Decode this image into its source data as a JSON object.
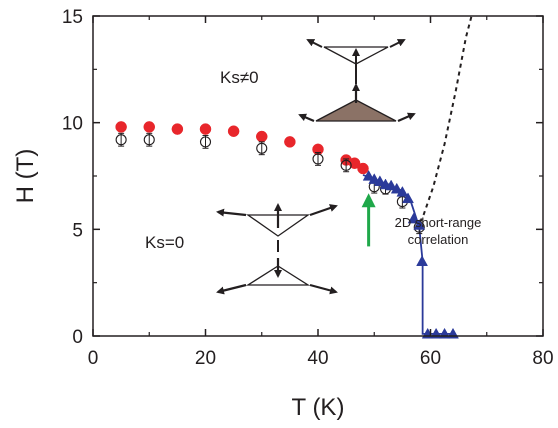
{
  "chart_data": {
    "type": "scatter",
    "xlabel": "T (K)",
    "ylabel": "H (T)",
    "xlim": [
      0,
      80
    ],
    "ylim": [
      0,
      15
    ],
    "x_ticks": [
      "0",
      "20",
      "40",
      "60",
      "80"
    ],
    "y_ticks": [
      "0",
      "5",
      "10",
      "15"
    ],
    "grid": false,
    "series": [
      {
        "marker": "filled-circle",
        "color": "#e8262b",
        "points": [
          [
            5,
            9.8
          ],
          [
            10,
            9.8
          ],
          [
            15,
            9.7
          ],
          [
            20,
            9.7
          ],
          [
            25,
            9.6
          ],
          [
            30,
            9.35
          ],
          [
            35,
            9.1
          ],
          [
            40,
            8.75
          ],
          [
            45,
            8.25
          ],
          [
            46.5,
            8.1
          ],
          [
            48,
            7.85
          ]
        ]
      },
      {
        "marker": "open-circle",
        "color": "#231f20",
        "points": [
          [
            5,
            9.2,
            0.3
          ],
          [
            10,
            9.2,
            0.3
          ],
          [
            20,
            9.1,
            0.3
          ],
          [
            30,
            8.8,
            0.3
          ],
          [
            40,
            8.3,
            0.3
          ],
          [
            45,
            8.0,
            0.3
          ],
          [
            50,
            7.0,
            0.3
          ],
          [
            52,
            6.9,
            0.25
          ],
          [
            55,
            6.3,
            0.3
          ],
          [
            58,
            5.1,
            0.3
          ]
        ]
      },
      {
        "marker": "filled-triangle",
        "color": "#2b3a9a",
        "points": [
          [
            49,
            7.5
          ],
          [
            50,
            7.35
          ],
          [
            51,
            7.25
          ],
          [
            52,
            7.1
          ],
          [
            53,
            7.05
          ],
          [
            54,
            6.9
          ],
          [
            55,
            6.75
          ],
          [
            56,
            6.45
          ],
          [
            57,
            5.5
          ],
          [
            58,
            5.2
          ],
          [
            58.5,
            3.5
          ],
          [
            59.5,
            0.1
          ],
          [
            61,
            0.1
          ],
          [
            62.5,
            0.1
          ],
          [
            64,
            0.1
          ]
        ]
      }
    ],
    "phase_boundary_solid": {
      "color": "#2b3a9a",
      "points": [
        [
          48,
          7.55
        ],
        [
          52,
          7.15
        ],
        [
          55,
          6.8
        ],
        [
          56.5,
          6.3
        ],
        [
          58,
          5.1
        ],
        [
          58.6,
          3.5
        ],
        [
          58.6,
          0.1
        ],
        [
          59.5,
          0.1
        ],
        [
          64,
          0.1
        ]
      ]
    },
    "crossover_dashed": {
      "color": "#231f20",
      "points": [
        [
          57.5,
          5.0
        ],
        [
          58.8,
          5.7
        ],
        [
          60.5,
          7.0
        ],
        [
          62.5,
          9.0
        ],
        [
          64.5,
          11.5
        ],
        [
          66.3,
          14.0
        ],
        [
          67.3,
          15.0
        ]
      ]
    },
    "arrow": {
      "color": "#1fa84a",
      "x": 49,
      "from_y": 4.2,
      "to_y": 6.6
    },
    "annotations": {
      "ks_nonzero": "Ks≠0",
      "ks_zero": "Ks=0",
      "short_range_line1": "2D short-range",
      "short_range_line2": "correlation"
    }
  }
}
